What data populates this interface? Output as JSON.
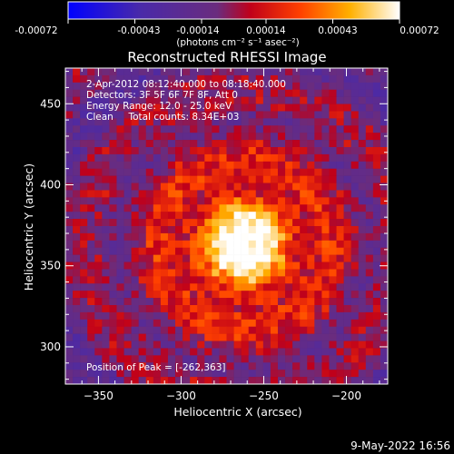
{
  "colorbar": {
    "tick_labels": [
      "-0.00072",
      "-0.00043",
      "-0.00014",
      "0.00014",
      "0.00043",
      "0.00072"
    ],
    "units": "(photons cm⁻² s⁻¹ asec⁻²)",
    "range": [
      -0.00072,
      0.00072
    ]
  },
  "chart_data": {
    "type": "heatmap",
    "title": "Reconstructed RHESSI Image",
    "xlabel": "Heliocentric X (arcsec)",
    "ylabel": "Heliocentric Y (arcsec)",
    "xlim": [
      -370,
      -175
    ],
    "ylim": [
      277,
      472
    ],
    "xticks": [
      -350,
      -300,
      -250,
      -200
    ],
    "yticks": [
      300,
      350,
      400,
      450
    ],
    "grid": false,
    "peak": {
      "x": -262,
      "y": 363
    },
    "source_sigma_arcsec": 25,
    "colormap": "rainbow-to-hot (blue, purple, red, orange, yellow, white)",
    "annotations": [
      "2-Apr-2012 08:12:40.000 to 08:18:40.000",
      "Detectors: 3F 5F 6F 7F 8F, Att 0",
      "Energy Range: 12.0 - 25.0 keV",
      "Clean     Total counts: 8.34E+03"
    ],
    "peak_label": "Position of Peak = [-262,363]"
  },
  "footer": {
    "date_stamp": "9-May-2022 16:56"
  }
}
